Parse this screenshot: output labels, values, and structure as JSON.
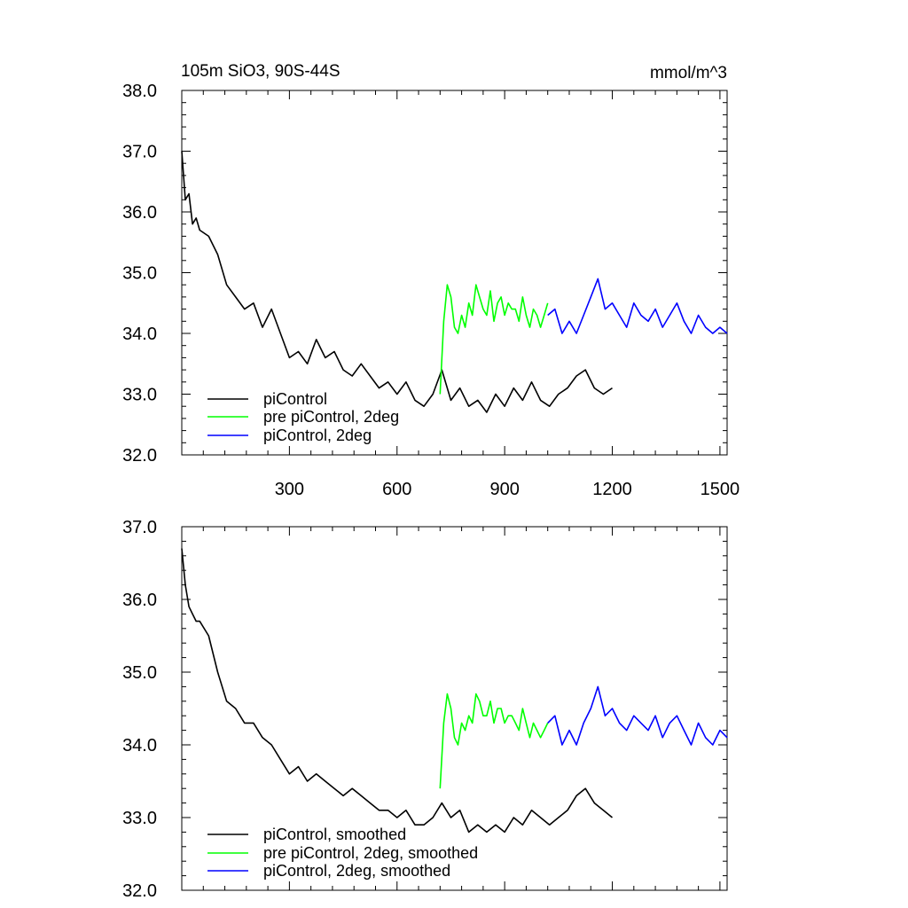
{
  "chart_data": [
    {
      "type": "line",
      "title": "105m SiO3, 90S-44S",
      "units": "mmol/m^3",
      "xlim": [
        0,
        1520
      ],
      "ylim": [
        32.0,
        38.0
      ],
      "xticks": [
        300,
        600,
        900,
        1200,
        1500
      ],
      "xtick_labels": [
        "300",
        "600",
        "900",
        "1200",
        "1500"
      ],
      "yticks": [
        32.0,
        33.0,
        34.0,
        35.0,
        36.0,
        37.0,
        38.0
      ],
      "ytick_labels": [
        "32.0",
        "33.0",
        "34.0",
        "35.0",
        "36.0",
        "37.0",
        "38.0"
      ],
      "legend_position": "bottom-left",
      "series": [
        {
          "name": "piControl",
          "color": "#000000",
          "x": [
            0,
            10,
            20,
            30,
            40,
            50,
            75,
            100,
            125,
            150,
            175,
            200,
            225,
            250,
            275,
            300,
            325,
            350,
            375,
            400,
            425,
            450,
            475,
            500,
            525,
            550,
            575,
            600,
            625,
            650,
            675,
            700,
            725,
            750,
            775,
            800,
            825,
            850,
            875,
            900,
            925,
            950,
            975,
            1000,
            1025,
            1050,
            1075,
            1100,
            1125,
            1150,
            1175,
            1200
          ],
          "y": [
            37.0,
            36.2,
            36.3,
            35.8,
            35.9,
            35.7,
            35.6,
            35.3,
            34.8,
            34.6,
            34.4,
            34.5,
            34.1,
            34.4,
            34.0,
            33.6,
            33.7,
            33.5,
            33.9,
            33.6,
            33.7,
            33.4,
            33.3,
            33.5,
            33.3,
            33.1,
            33.2,
            33.0,
            33.2,
            32.9,
            32.8,
            33.0,
            33.4,
            32.9,
            33.1,
            32.8,
            32.9,
            32.7,
            33.0,
            32.8,
            33.1,
            32.9,
            33.2,
            32.9,
            32.8,
            33.0,
            33.1,
            33.3,
            33.4,
            33.1,
            33.0,
            33.1
          ]
        },
        {
          "name": "pre piControl, 2deg",
          "color": "#00ff00",
          "x": [
            720,
            730,
            740,
            750,
            760,
            770,
            780,
            790,
            800,
            810,
            820,
            830,
            840,
            850,
            860,
            870,
            880,
            890,
            900,
            910,
            920,
            930,
            940,
            950,
            960,
            970,
            980,
            990,
            1000,
            1010,
            1020
          ],
          "y": [
            33.0,
            34.2,
            34.8,
            34.6,
            34.1,
            34.0,
            34.3,
            34.1,
            34.5,
            34.3,
            34.8,
            34.6,
            34.4,
            34.3,
            34.7,
            34.2,
            34.5,
            34.6,
            34.3,
            34.5,
            34.4,
            34.4,
            34.2,
            34.6,
            34.3,
            34.1,
            34.4,
            34.3,
            34.1,
            34.3,
            34.5
          ]
        },
        {
          "name": "piControl, 2deg",
          "color": "#0000ff",
          "x": [
            1020,
            1040,
            1060,
            1080,
            1100,
            1120,
            1140,
            1160,
            1180,
            1200,
            1220,
            1240,
            1260,
            1280,
            1300,
            1320,
            1340,
            1360,
            1380,
            1400,
            1420,
            1440,
            1460,
            1480,
            1500,
            1520
          ],
          "y": [
            34.3,
            34.4,
            34.0,
            34.2,
            34.0,
            34.3,
            34.6,
            34.9,
            34.4,
            34.5,
            34.3,
            34.1,
            34.5,
            34.3,
            34.2,
            34.4,
            34.1,
            34.3,
            34.5,
            34.2,
            34.0,
            34.3,
            34.1,
            34.0,
            34.1,
            34.0
          ]
        }
      ]
    },
    {
      "type": "line",
      "xlim": [
        0,
        1520
      ],
      "ylim": [
        32.0,
        37.0
      ],
      "xticks": [
        300,
        600,
        900,
        1200,
        1500
      ],
      "yticks": [
        32.0,
        33.0,
        34.0,
        35.0,
        36.0,
        37.0
      ],
      "ytick_labels": [
        "32.0",
        "33.0",
        "34.0",
        "35.0",
        "36.0",
        "37.0"
      ],
      "legend_position": "bottom-left",
      "series": [
        {
          "name": "piControl, smoothed",
          "color": "#000000",
          "x": [
            0,
            10,
            20,
            30,
            40,
            50,
            75,
            100,
            125,
            150,
            175,
            200,
            225,
            250,
            275,
            300,
            325,
            350,
            375,
            400,
            425,
            450,
            475,
            500,
            525,
            550,
            575,
            600,
            625,
            650,
            675,
            700,
            725,
            750,
            775,
            800,
            825,
            850,
            875,
            900,
            925,
            950,
            975,
            1000,
            1025,
            1050,
            1075,
            1100,
            1125,
            1150,
            1175,
            1200
          ],
          "y": [
            36.7,
            36.2,
            35.9,
            35.8,
            35.7,
            35.7,
            35.5,
            35.0,
            34.6,
            34.5,
            34.3,
            34.3,
            34.1,
            34.0,
            33.8,
            33.6,
            33.7,
            33.5,
            33.6,
            33.5,
            33.4,
            33.3,
            33.4,
            33.3,
            33.2,
            33.1,
            33.1,
            33.0,
            33.1,
            32.9,
            32.9,
            33.0,
            33.2,
            33.0,
            33.1,
            32.8,
            32.9,
            32.8,
            32.9,
            32.8,
            33.0,
            32.9,
            33.1,
            33.0,
            32.9,
            33.0,
            33.1,
            33.3,
            33.4,
            33.2,
            33.1,
            33.0
          ]
        },
        {
          "name": "pre piControl, 2deg, smoothed",
          "color": "#00ff00",
          "x": [
            720,
            730,
            740,
            750,
            760,
            770,
            780,
            790,
            800,
            810,
            820,
            830,
            840,
            850,
            860,
            870,
            880,
            890,
            900,
            910,
            920,
            930,
            940,
            950,
            960,
            970,
            980,
            990,
            1000,
            1010,
            1020
          ],
          "y": [
            33.4,
            34.3,
            34.7,
            34.5,
            34.1,
            34.0,
            34.3,
            34.2,
            34.4,
            34.3,
            34.7,
            34.6,
            34.4,
            34.4,
            34.6,
            34.3,
            34.5,
            34.5,
            34.3,
            34.4,
            34.4,
            34.3,
            34.2,
            34.5,
            34.3,
            34.1,
            34.3,
            34.2,
            34.1,
            34.2,
            34.3
          ]
        },
        {
          "name": "piControl, 2deg, smoothed",
          "color": "#0000ff",
          "x": [
            1020,
            1040,
            1060,
            1080,
            1100,
            1120,
            1140,
            1160,
            1180,
            1200,
            1220,
            1240,
            1260,
            1280,
            1300,
            1320,
            1340,
            1360,
            1380,
            1400,
            1420,
            1440,
            1460,
            1480,
            1500,
            1520
          ],
          "y": [
            34.3,
            34.4,
            34.0,
            34.2,
            34.0,
            34.3,
            34.5,
            34.8,
            34.4,
            34.5,
            34.3,
            34.2,
            34.4,
            34.3,
            34.2,
            34.4,
            34.1,
            34.3,
            34.4,
            34.2,
            34.0,
            34.3,
            34.1,
            34.0,
            34.2,
            34.1
          ]
        }
      ]
    }
  ]
}
